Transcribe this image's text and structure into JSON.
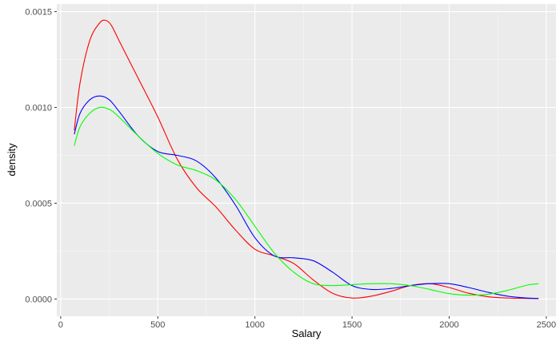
{
  "chart_data": {
    "type": "line",
    "title": "",
    "xlabel": "Salary",
    "ylabel": "density",
    "xlim": [
      -20,
      2550
    ],
    "ylim": [
      -9e-05,
      0.00154
    ],
    "x_ticks": [
      0,
      500,
      1000,
      1500,
      2000,
      2500
    ],
    "x_tick_labels": [
      "0",
      "500",
      "1000",
      "1500",
      "2000",
      "2500"
    ],
    "y_ticks": [
      0.0,
      0.0005,
      0.001,
      0.0015
    ],
    "y_tick_labels": [
      "0.0000",
      "0.0005",
      "0.0010",
      "0.0015"
    ],
    "grid": true,
    "background": "#ebebeb",
    "series": [
      {
        "color": "#ff0000",
        "x": [
          70,
          100,
          150,
          200,
          230,
          260,
          300,
          400,
          500,
          600,
          700,
          800,
          900,
          1000,
          1100,
          1200,
          1300,
          1400,
          1500,
          1600,
          1700,
          1800,
          1900,
          2000,
          2100,
          2200,
          2300,
          2400,
          2460
        ],
        "y": [
          0.00088,
          0.00113,
          0.00135,
          0.00144,
          0.001455,
          0.00143,
          0.00135,
          0.00115,
          0.00095,
          0.00073,
          0.00058,
          0.00048,
          0.00036,
          0.00026,
          0.000225,
          0.000185,
          0.0001,
          3e-05,
          5e-06,
          1.5e-05,
          4e-05,
          7e-05,
          8e-05,
          6e-05,
          3e-05,
          1.2e-05,
          5e-06,
          3e-06,
          2e-06
        ]
      },
      {
        "color": "#0000ff",
        "x": [
          70,
          100,
          150,
          200,
          250,
          300,
          400,
          500,
          600,
          700,
          800,
          900,
          1000,
          1100,
          1200,
          1300,
          1400,
          1500,
          1600,
          1700,
          1800,
          1900,
          2000,
          2100,
          2200,
          2300,
          2400,
          2460
        ],
        "y": [
          0.00086,
          0.00097,
          0.00104,
          0.00106,
          0.00104,
          0.00098,
          0.00085,
          0.00077,
          0.00075,
          0.00072,
          0.00063,
          0.00049,
          0.00032,
          0.000225,
          0.000215,
          0.0002,
          0.00014,
          7e-05,
          5e-05,
          5.5e-05,
          7e-05,
          8e-05,
          8e-05,
          6e-05,
          3.5e-05,
          1.5e-05,
          5e-06,
          3e-06
        ]
      },
      {
        "color": "#00ff00",
        "x": [
          70,
          100,
          150,
          200,
          250,
          300,
          400,
          500,
          600,
          700,
          800,
          900,
          1000,
          1100,
          1200,
          1300,
          1400,
          1500,
          1600,
          1700,
          1800,
          1900,
          2000,
          2100,
          2200,
          2300,
          2400,
          2460
        ],
        "y": [
          0.0008,
          0.0009,
          0.00097,
          0.001,
          0.00099,
          0.00095,
          0.00085,
          0.00076,
          0.0007,
          0.00067,
          0.00062,
          0.00052,
          0.00038,
          0.00024,
          0.00014,
          8e-05,
          7e-05,
          7.5e-05,
          8e-05,
          8e-05,
          7e-05,
          5e-05,
          2.8e-05,
          2e-05,
          2.5e-05,
          4.5e-05,
          7.2e-05,
          8e-05
        ]
      }
    ]
  }
}
